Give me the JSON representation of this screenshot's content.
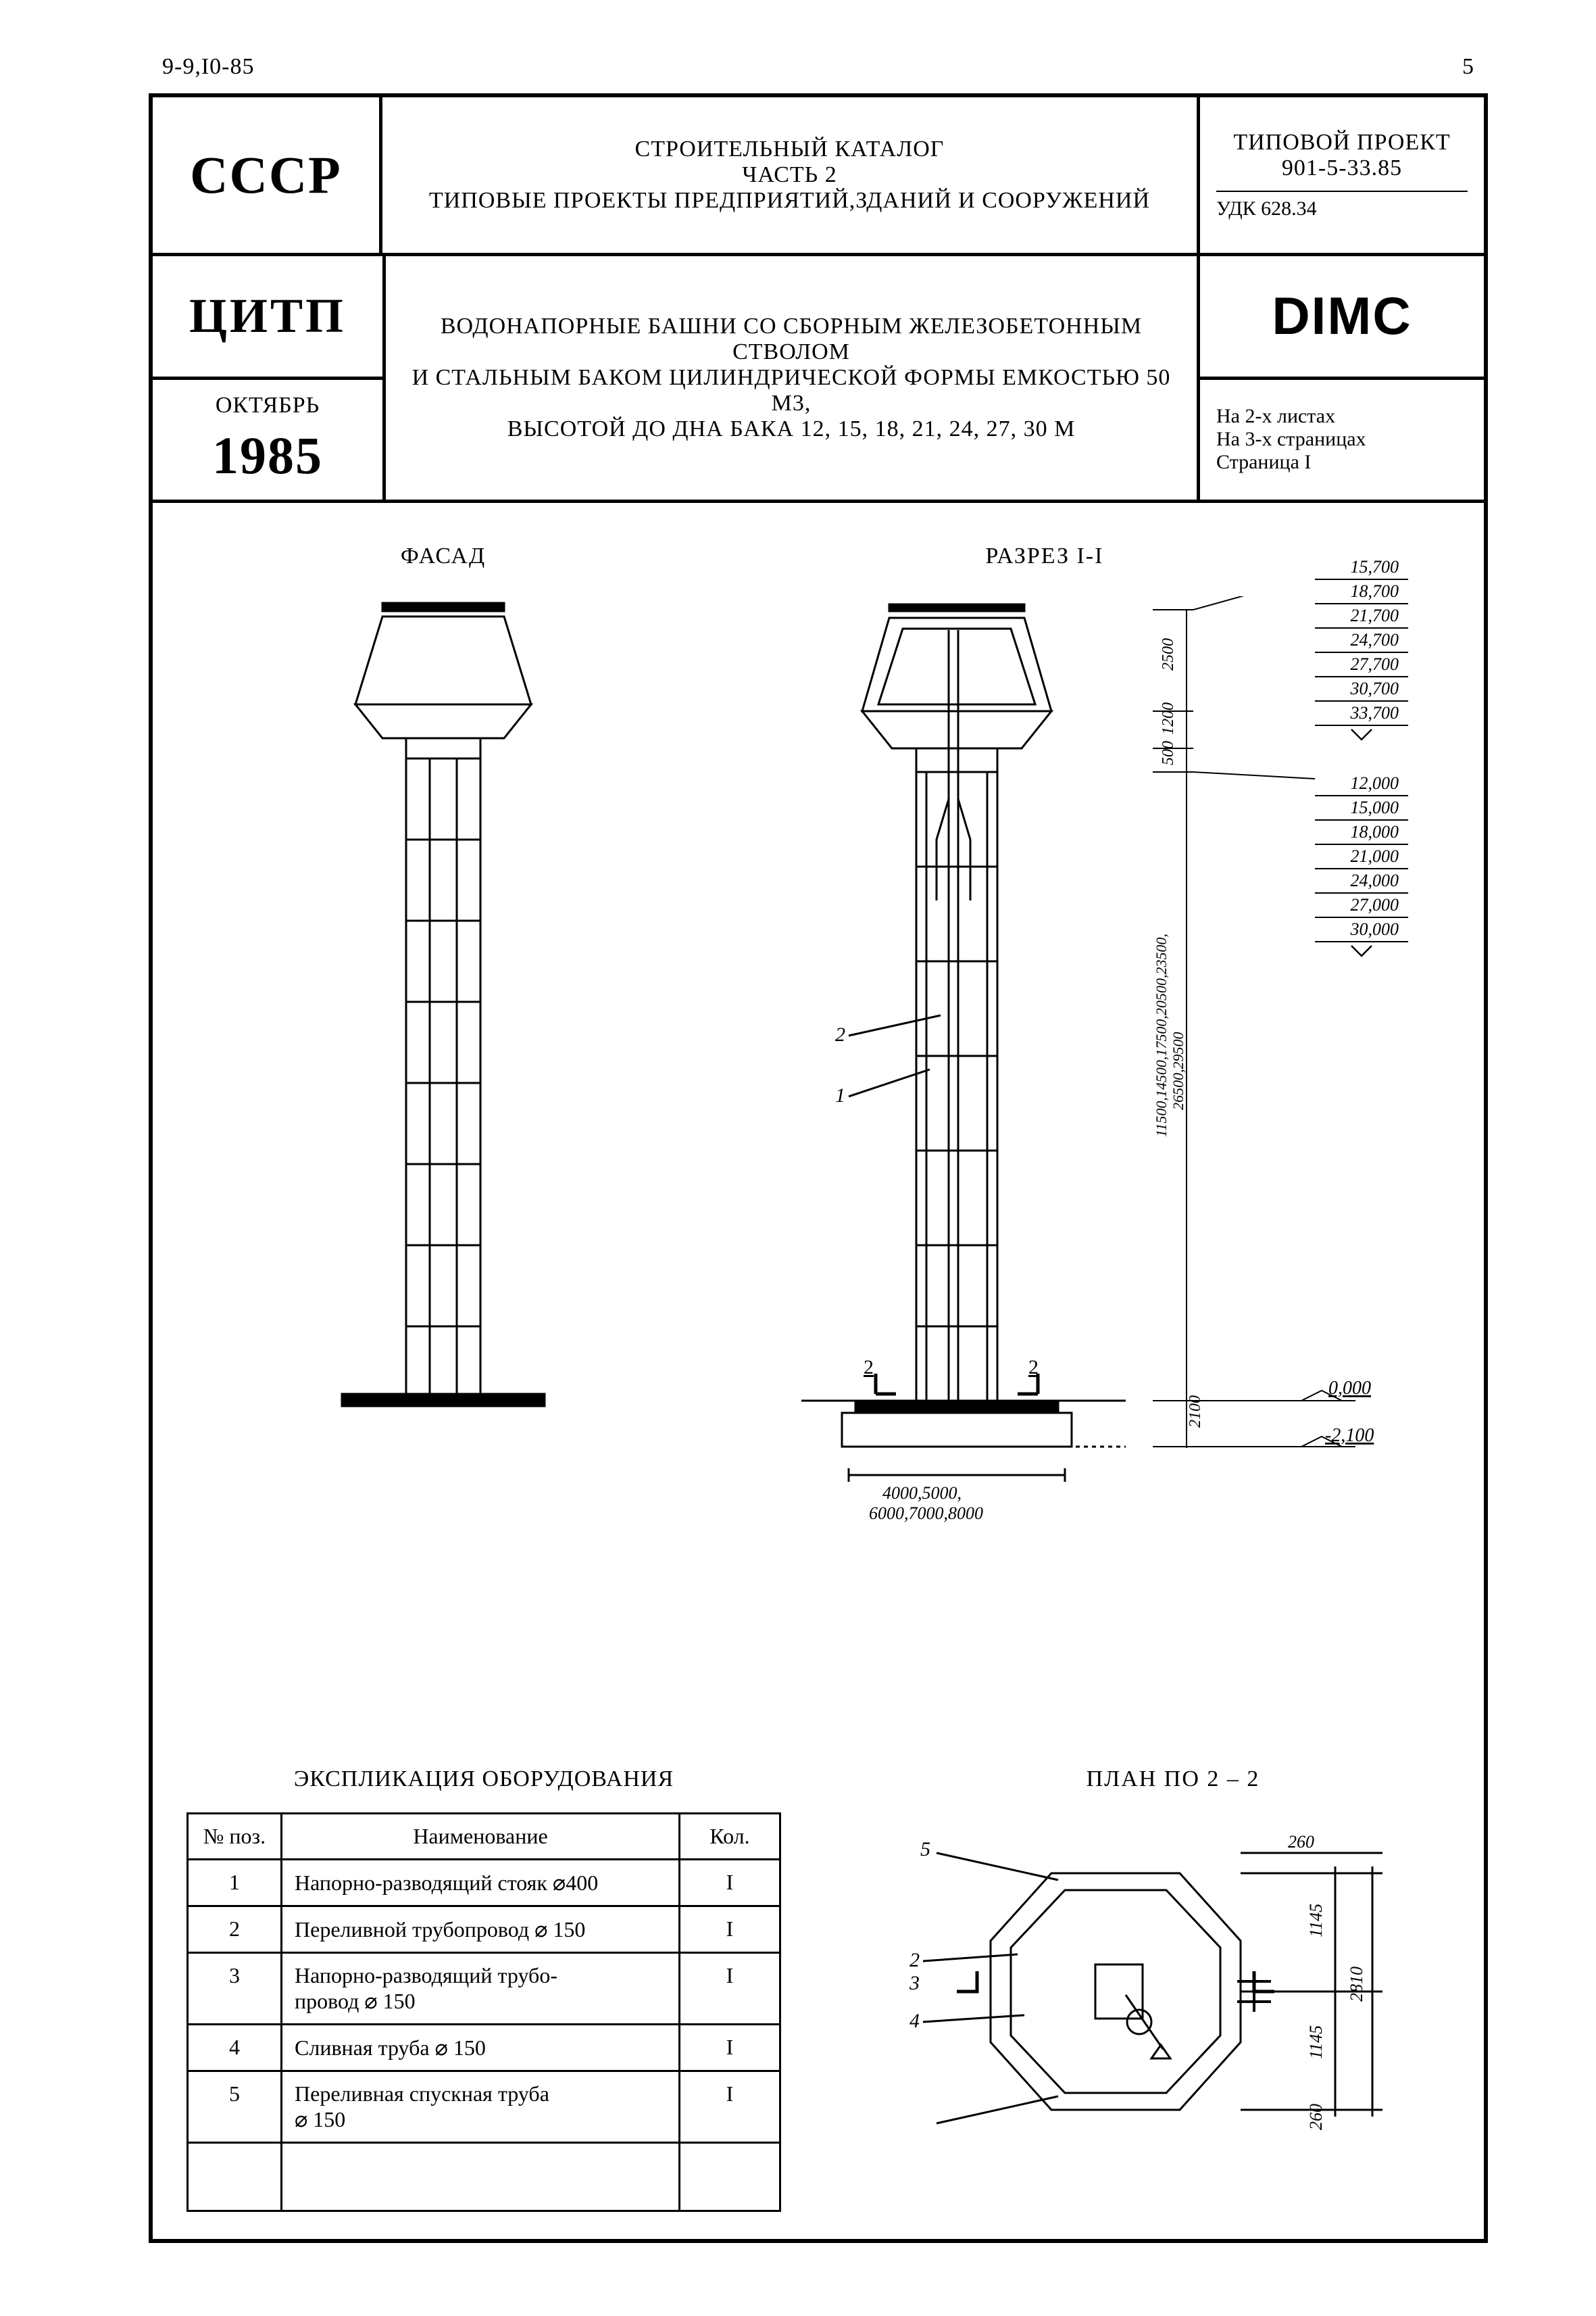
{
  "page": {
    "top_left": "9-9,I0-85",
    "top_right": "5"
  },
  "header": {
    "country": "СССР",
    "org": "ЦИТП",
    "month": "ОКТЯБРЬ",
    "year": "1985",
    "catalog_line1": "СТРОИТЕЛЬНЫЙ КАТАЛОГ",
    "catalog_line2": "ЧАСТЬ 2",
    "catalog_line3": "ТИПОВЫЕ ПРОЕКТЫ ПРЕДПРИЯТИЙ,ЗДАНИЙ И СООРУЖЕНИЙ",
    "project_label": "ТИПОВОЙ ПРОЕКТ",
    "project_number": "901-5-33.85",
    "udc": "УДК 628.34",
    "dimc": "DIMC",
    "desc_line1": "ВОДОНАПОРНЫЕ БАШНИ СО СБОРНЫМ ЖЕЛЕЗОБЕТОННЫМ СТВОЛОМ",
    "desc_line2": "И СТАЛЬНЫМ БАКОМ ЦИЛИНДРИЧЕСКОЙ ФОРМЫ ЕМКОСТЬЮ 50 М3,",
    "desc_line3": "ВЫСОТОЙ ДО ДНА БАКА 12, 15, 18, 21, 24, 27, 30 М",
    "sheets_line1": "На 2-х листах",
    "sheets_line2": "На 3-х страницах",
    "sheets_line3": "Страница I"
  },
  "drawings": {
    "facade_title": "ФАСАД",
    "section_title": "РАЗРЕЗ I-I",
    "plan_title": "ПЛАН ПО 2 – 2",
    "colors": {
      "stroke": "#000000",
      "fill": "#ffffff",
      "background": "#ffffff"
    },
    "stroke_width": 3,
    "top_elevations": [
      "15,700",
      "18,700",
      "21,700",
      "24,700",
      "27,700",
      "30,700",
      "33,700"
    ],
    "mid_elevations": [
      "12,000",
      "15,000",
      "18,000",
      "21,000",
      "24,000",
      "27,000",
      "30,000"
    ],
    "ground_elev": "0,000",
    "below_elev": "-2,100",
    "tank_dims": {
      "h_upper": "2500",
      "h_tank": "1200",
      "h_stub": "500"
    },
    "shaft_heights_label": "11500,14500,17500,20500,23500,\n26500,29500",
    "foundation_label": "4000,5000,\n6000,7000,8000",
    "foundation_depth": "2100",
    "callouts": [
      "1",
      "2"
    ],
    "section_marks": "2",
    "plan": {
      "leaders": [
        "2",
        "3",
        "4",
        "5"
      ],
      "dim_inner": "1145",
      "dim_inner2": "1145",
      "dim_outer": "2810",
      "dim_edge": "260",
      "dim_edge2": "260"
    }
  },
  "explication": {
    "title": "ЭКСПЛИКАЦИЯ ОБОРУДОВАНИЯ",
    "columns": [
      "№ поз.",
      "Наименование",
      "Кол."
    ],
    "rows": [
      {
        "pos": "1",
        "name": "Напорно-разводящий стояк ⌀400",
        "qty": "I"
      },
      {
        "pos": "2",
        "name": "Переливной трубопровод ⌀ 150",
        "qty": "I"
      },
      {
        "pos": "3",
        "name": "Напорно-разводящий трубо-\nпровод ⌀ 150",
        "qty": "I"
      },
      {
        "pos": "4",
        "name": "Сливная труба ⌀ 150",
        "qty": "I"
      },
      {
        "pos": "5",
        "name": "Переливная спускная труба\n⌀ 150",
        "qty": "I"
      }
    ]
  }
}
